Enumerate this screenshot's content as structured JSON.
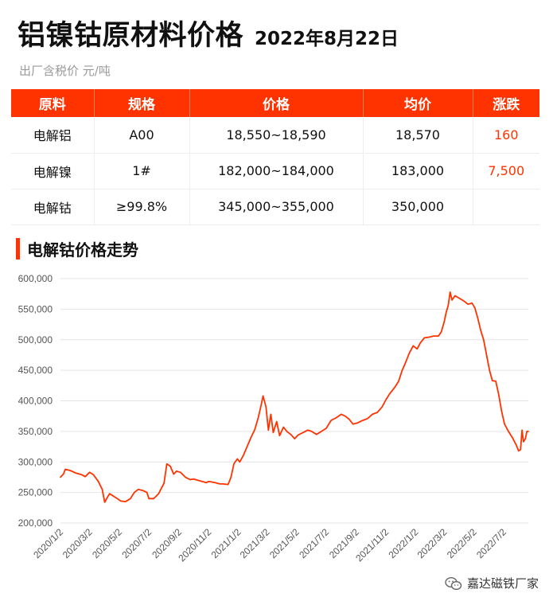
{
  "header": {
    "title": "铝镍钴原材料价格",
    "date": "2022年8月22日",
    "subtitle": "出厂含税价 元/吨"
  },
  "table": {
    "columns": [
      "原料",
      "规格",
      "价格",
      "均价",
      "涨跌"
    ],
    "rows": [
      {
        "material": "电解铝",
        "spec": "A00",
        "price": "18,550~18,590",
        "avg": "18,570",
        "change": "160"
      },
      {
        "material": "电解镍",
        "spec": "1#",
        "price": "182,000~184,000",
        "avg": "183,000",
        "change": "7,500"
      },
      {
        "material": "电解钴",
        "spec": "≥99.8%",
        "price": "345,000~355,000",
        "avg": "350,000",
        "change": ""
      }
    ]
  },
  "section_title": "电解钴价格走势",
  "watermark": {
    "text": "嘉达磁铁厂家",
    "icon": "wechat-icon"
  },
  "colors": {
    "accent": "#ff3300",
    "line": "#ff3300"
  },
  "chart_data": {
    "type": "line",
    "title": "",
    "xlabel": "",
    "ylabel": "",
    "ylim": [
      200000,
      600000
    ],
    "yticks": [
      200000,
      250000,
      300000,
      350000,
      400000,
      450000,
      500000,
      550000,
      600000
    ],
    "ytick_labels": [
      "200,000",
      "250,000",
      "300,000",
      "350,000",
      "400,000",
      "450,000",
      "500,000",
      "550,000",
      "600,000"
    ],
    "xlim": [
      "2020-01-02",
      "2022-08-22"
    ],
    "xticks": [
      "2020-01-02",
      "2020-03-02",
      "2020-05-02",
      "2020-07-02",
      "2020-09-02",
      "2020-11-02",
      "2021-01-02",
      "2021-03-02",
      "2021-05-02",
      "2021-07-02",
      "2021-09-02",
      "2021-11-02",
      "2022-01-02",
      "2022-03-02",
      "2022-05-02",
      "2022-07-02"
    ],
    "xtick_labels": [
      "2020/1/2",
      "2020/3/2",
      "2020/5/2",
      "2020/7/2",
      "2020/9/2",
      "2020/11/2",
      "2021/1/2",
      "2021/3/2",
      "2021/5/2",
      "2021/7/2",
      "2021/9/2",
      "2021/11/2",
      "2022/1/2",
      "2022/3/2",
      "2022/5/2",
      "2022/7/2"
    ],
    "grid": "horizontal",
    "legend": "none",
    "series": [
      {
        "color": "#ff3300",
        "points": [
          [
            "2020-01-02",
            275000
          ],
          [
            "2020-01-08",
            280000
          ],
          [
            "2020-01-12",
            288000
          ],
          [
            "2020-01-22",
            286000
          ],
          [
            "2020-02-02",
            282000
          ],
          [
            "2020-02-15",
            279000
          ],
          [
            "2020-02-22",
            276000
          ],
          [
            "2020-03-02",
            283000
          ],
          [
            "2020-03-10",
            279000
          ],
          [
            "2020-03-20",
            268000
          ],
          [
            "2020-03-28",
            255000
          ],
          [
            "2020-04-02",
            234000
          ],
          [
            "2020-04-06",
            240000
          ],
          [
            "2020-04-12",
            248000
          ],
          [
            "2020-04-20",
            244000
          ],
          [
            "2020-04-28",
            240000
          ],
          [
            "2020-05-05",
            236000
          ],
          [
            "2020-05-15",
            235000
          ],
          [
            "2020-05-25",
            240000
          ],
          [
            "2020-06-02",
            250000
          ],
          [
            "2020-06-10",
            255000
          ],
          [
            "2020-06-20",
            253000
          ],
          [
            "2020-06-28",
            250000
          ],
          [
            "2020-07-02",
            240000
          ],
          [
            "2020-07-12",
            240000
          ],
          [
            "2020-07-22",
            248000
          ],
          [
            "2020-08-02",
            265000
          ],
          [
            "2020-08-08",
            297000
          ],
          [
            "2020-08-15",
            293000
          ],
          [
            "2020-08-22",
            280000
          ],
          [
            "2020-08-28",
            285000
          ],
          [
            "2020-09-05",
            283000
          ],
          [
            "2020-09-15",
            275000
          ],
          [
            "2020-09-25",
            271000
          ],
          [
            "2020-10-02",
            272000
          ],
          [
            "2020-10-15",
            269000
          ],
          [
            "2020-10-28",
            266000
          ],
          [
            "2020-11-02",
            268000
          ],
          [
            "2020-11-15",
            266000
          ],
          [
            "2020-11-25",
            264000
          ],
          [
            "2020-12-02",
            264000
          ],
          [
            "2020-12-12",
            263000
          ],
          [
            "2020-12-18",
            275000
          ],
          [
            "2020-12-24",
            297000
          ],
          [
            "2020-12-31",
            305000
          ],
          [
            "2021-01-05",
            300000
          ],
          [
            "2021-01-12",
            310000
          ],
          [
            "2021-01-20",
            325000
          ],
          [
            "2021-01-28",
            340000
          ],
          [
            "2021-02-05",
            353000
          ],
          [
            "2021-02-12",
            372000
          ],
          [
            "2021-02-18",
            393000
          ],
          [
            "2021-02-22",
            408000
          ],
          [
            "2021-02-28",
            390000
          ],
          [
            "2021-03-05",
            352000
          ],
          [
            "2021-03-10",
            378000
          ],
          [
            "2021-03-15",
            348000
          ],
          [
            "2021-03-22",
            366000
          ],
          [
            "2021-03-28",
            343000
          ],
          [
            "2021-04-05",
            357000
          ],
          [
            "2021-04-12",
            350000
          ],
          [
            "2021-04-20",
            345000
          ],
          [
            "2021-04-28",
            338000
          ],
          [
            "2021-05-05",
            344000
          ],
          [
            "2021-05-15",
            348000
          ],
          [
            "2021-05-25",
            352000
          ],
          [
            "2021-06-02",
            350000
          ],
          [
            "2021-06-12",
            345000
          ],
          [
            "2021-06-22",
            350000
          ],
          [
            "2021-07-02",
            355000
          ],
          [
            "2021-07-12",
            368000
          ],
          [
            "2021-07-22",
            372000
          ],
          [
            "2021-08-02",
            378000
          ],
          [
            "2021-08-10",
            375000
          ],
          [
            "2021-08-18",
            370000
          ],
          [
            "2021-08-26",
            362000
          ],
          [
            "2021-09-05",
            364000
          ],
          [
            "2021-09-15",
            368000
          ],
          [
            "2021-09-25",
            371000
          ],
          [
            "2021-10-05",
            378000
          ],
          [
            "2021-10-15",
            381000
          ],
          [
            "2021-10-25",
            390000
          ],
          [
            "2021-11-02",
            402000
          ],
          [
            "2021-11-10",
            412000
          ],
          [
            "2021-11-20",
            422000
          ],
          [
            "2021-11-28",
            432000
          ],
          [
            "2021-12-05",
            449000
          ],
          [
            "2021-12-12",
            462000
          ],
          [
            "2021-12-20",
            478000
          ],
          [
            "2021-12-28",
            490000
          ],
          [
            "2022-01-05",
            485000
          ],
          [
            "2022-01-12",
            495000
          ],
          [
            "2022-01-20",
            503000
          ],
          [
            "2022-01-28",
            504000
          ],
          [
            "2022-02-08",
            506000
          ],
          [
            "2022-02-18",
            506000
          ],
          [
            "2022-02-24",
            513000
          ],
          [
            "2022-03-02",
            530000
          ],
          [
            "2022-03-06",
            545000
          ],
          [
            "2022-03-10",
            556000
          ],
          [
            "2022-03-14",
            578000
          ],
          [
            "2022-03-18",
            565000
          ],
          [
            "2022-03-24",
            572000
          ],
          [
            "2022-04-02",
            568000
          ],
          [
            "2022-04-12",
            563000
          ],
          [
            "2022-04-20",
            558000
          ],
          [
            "2022-04-28",
            560000
          ],
          [
            "2022-05-04",
            552000
          ],
          [
            "2022-05-10",
            535000
          ],
          [
            "2022-05-16",
            515000
          ],
          [
            "2022-05-22",
            500000
          ],
          [
            "2022-05-28",
            475000
          ],
          [
            "2022-06-03",
            450000
          ],
          [
            "2022-06-09",
            433000
          ],
          [
            "2022-06-16",
            432000
          ],
          [
            "2022-06-22",
            410000
          ],
          [
            "2022-06-28",
            383000
          ],
          [
            "2022-07-04",
            362000
          ],
          [
            "2022-07-12",
            350000
          ],
          [
            "2022-07-20",
            340000
          ],
          [
            "2022-07-28",
            328000
          ],
          [
            "2022-08-02",
            318000
          ],
          [
            "2022-08-06",
            320000
          ],
          [
            "2022-08-09",
            352000
          ],
          [
            "2022-08-12",
            333000
          ],
          [
            "2022-08-16",
            338000
          ],
          [
            "2022-08-19",
            350000
          ],
          [
            "2022-08-22",
            350000
          ]
        ]
      }
    ]
  }
}
